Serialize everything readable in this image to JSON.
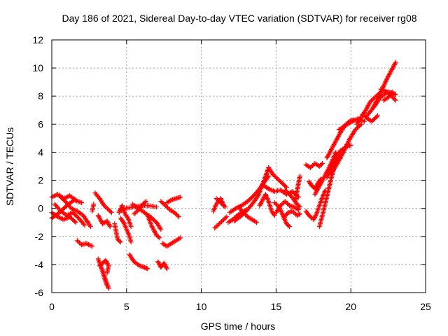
{
  "chart_data": {
    "type": "scatter",
    "title": "Day 186 of 2021, Sidereal Day-to-day VTEC variation (SDTVAR) for receiver rg08",
    "xlabel": "GPS time / hours",
    "ylabel": "SDTVAR / TECUs",
    "xlim": [
      0,
      25
    ],
    "ylim": [
      -6,
      12
    ],
    "xticks": [
      0,
      5,
      10,
      15,
      20,
      25
    ],
    "yticks": [
      -6,
      -4,
      -2,
      0,
      2,
      4,
      6,
      8,
      10,
      12
    ],
    "xtick_labels": [
      "0",
      "5",
      "10",
      "15",
      "20",
      "25"
    ],
    "ytick_labels": [
      "-6",
      "-4",
      "-2",
      "0",
      "2",
      "4",
      "6",
      "8",
      "10",
      "12"
    ],
    "grid": true,
    "marker": "+",
    "color": "#ff0000",
    "tracks": [
      [
        [
          0.0,
          -0.7
        ],
        [
          0.5,
          -0.3
        ],
        [
          1.0,
          0.2
        ],
        [
          1.5,
          0.6
        ],
        [
          2.0,
          0.4
        ]
      ],
      [
        [
          0.0,
          0.8
        ],
        [
          0.4,
          1.0
        ],
        [
          0.8,
          0.7
        ],
        [
          1.2,
          0.9
        ],
        [
          1.6,
          0.6
        ]
      ],
      [
        [
          0.2,
          0.3
        ],
        [
          0.6,
          -0.2
        ],
        [
          1.0,
          -0.5
        ],
        [
          1.4,
          -0.3
        ],
        [
          1.8,
          -0.7
        ],
        [
          2.2,
          -1.2
        ]
      ],
      [
        [
          0.5,
          0.9
        ],
        [
          0.9,
          0.5
        ],
        [
          1.3,
          0.0
        ],
        [
          1.7,
          -0.2
        ],
        [
          2.1,
          -0.5
        ],
        [
          2.6,
          -1.3
        ]
      ],
      [
        [
          0.0,
          -0.3
        ],
        [
          0.4,
          -0.6
        ],
        [
          0.8,
          -0.8
        ],
        [
          1.2,
          -0.6
        ],
        [
          1.6,
          -1.0
        ]
      ],
      [
        [
          1.7,
          -2.3
        ],
        [
          2.0,
          -2.6
        ],
        [
          2.3,
          -2.5
        ],
        [
          2.7,
          -2.7
        ]
      ],
      [
        [
          2.7,
          -0.2
        ],
        [
          2.8,
          0.3
        ]
      ],
      [
        [
          2.9,
          1.1
        ],
        [
          3.2,
          0.7
        ],
        [
          3.5,
          0.2
        ],
        [
          3.8,
          -0.1
        ],
        [
          4.0,
          -0.3
        ]
      ],
      [
        [
          3.1,
          -0.5
        ],
        [
          3.4,
          -1.1
        ],
        [
          3.7,
          -0.9
        ],
        [
          3.9,
          -1.3
        ]
      ],
      [
        [
          3.1,
          -3.6
        ],
        [
          3.3,
          -4.2
        ],
        [
          3.5,
          -4.8
        ],
        [
          3.7,
          -5.4
        ],
        [
          3.8,
          -5.7
        ]
      ],
      [
        [
          3.2,
          -4.1
        ],
        [
          3.4,
          -3.9
        ],
        [
          3.6,
          -3.7
        ],
        [
          3.8,
          -4.1
        ],
        [
          3.7,
          -4.6
        ]
      ],
      [
        [
          3.4,
          -4.4
        ],
        [
          3.5,
          -4.9
        ],
        [
          3.6,
          -5.2
        ],
        [
          3.7,
          -5.5
        ]
      ],
      [
        [
          4.2,
          -1.1
        ],
        [
          4.4,
          -2.2
        ],
        [
          4.6,
          -2.4
        ]
      ],
      [
        [
          4.5,
          -0.3
        ],
        [
          4.7,
          0.2
        ],
        [
          4.9,
          -0.4
        ],
        [
          5.1,
          -0.7
        ],
        [
          5.3,
          -1.3
        ]
      ],
      [
        [
          4.6,
          -0.7
        ],
        [
          4.8,
          -1.0
        ],
        [
          5.0,
          -1.5
        ],
        [
          5.2,
          -2.0
        ],
        [
          5.3,
          -2.4
        ]
      ],
      [
        [
          4.5,
          -0.2
        ],
        [
          4.9,
          0.0
        ],
        [
          5.5,
          0.1
        ],
        [
          6.0,
          0.2
        ],
        [
          6.5,
          0.2
        ],
        [
          7.0,
          0.1
        ]
      ],
      [
        [
          5.4,
          0.3
        ],
        [
          5.8,
          0.0
        ],
        [
          6.2,
          -0.3
        ],
        [
          6.6,
          -0.6
        ],
        [
          7.0,
          -1.0
        ],
        [
          7.3,
          -1.5
        ]
      ],
      [
        [
          5.5,
          -0.4
        ],
        [
          5.8,
          -0.1
        ],
        [
          6.1,
          0.3
        ],
        [
          6.3,
          0.5
        ]
      ],
      [
        [
          5.2,
          -3.3
        ],
        [
          5.5,
          -3.8
        ],
        [
          5.9,
          -4.1
        ],
        [
          6.2,
          -4.2
        ],
        [
          6.4,
          -4.3
        ]
      ],
      [
        [
          6.4,
          -0.5
        ],
        [
          6.7,
          -1.3
        ],
        [
          7.0,
          -1.9
        ],
        [
          7.2,
          -2.1
        ]
      ],
      [
        [
          7.1,
          -3.8
        ],
        [
          7.3,
          -4.2
        ],
        [
          7.5,
          -3.9
        ],
        [
          7.7,
          -4.3
        ]
      ],
      [
        [
          7.3,
          0.5
        ],
        [
          7.6,
          0.2
        ],
        [
          7.9,
          -0.1
        ],
        [
          8.2,
          -0.3
        ],
        [
          8.5,
          -0.6
        ]
      ],
      [
        [
          7.4,
          -2.5
        ],
        [
          7.7,
          -2.7
        ],
        [
          8.0,
          -2.5
        ],
        [
          8.3,
          -2.3
        ],
        [
          8.6,
          -2.1
        ]
      ],
      [
        [
          7.7,
          0.4
        ],
        [
          8.0,
          0.6
        ],
        [
          8.3,
          0.7
        ],
        [
          8.6,
          0.8
        ]
      ],
      [
        [
          10.8,
          -0.2
        ],
        [
          11.0,
          0.3
        ],
        [
          11.3,
          0.7
        ],
        [
          11.5,
          0.2
        ]
      ],
      [
        [
          10.9,
          -1.4
        ],
        [
          11.2,
          -1.1
        ],
        [
          11.5,
          -0.8
        ],
        [
          11.7,
          -0.6
        ]
      ],
      [
        [
          11.0,
          0.7
        ],
        [
          11.3,
          0.4
        ],
        [
          11.6,
          0.1
        ]
      ],
      [
        [
          11.8,
          -1.0
        ],
        [
          12.1,
          -0.8
        ],
        [
          12.4,
          -0.5
        ],
        [
          12.7,
          -0.3
        ],
        [
          13.0,
          -0.1
        ]
      ],
      [
        [
          11.9,
          -0.3
        ],
        [
          12.3,
          0.0
        ],
        [
          12.7,
          0.2
        ],
        [
          13.1,
          0.5
        ],
        [
          13.5,
          0.9
        ],
        [
          13.9,
          1.4
        ],
        [
          14.3,
          2.0
        ],
        [
          14.5,
          2.3
        ]
      ],
      [
        [
          12.2,
          -0.9
        ],
        [
          12.6,
          -0.6
        ],
        [
          13.0,
          -0.2
        ],
        [
          13.4,
          0.3
        ],
        [
          13.8,
          0.9
        ],
        [
          14.2,
          2.0
        ],
        [
          14.5,
          2.9
        ],
        [
          14.8,
          2.4
        ],
        [
          15.3,
          1.9
        ],
        [
          15.7,
          1.5
        ]
      ],
      [
        [
          12.5,
          0.1
        ],
        [
          12.8,
          -0.3
        ],
        [
          13.1,
          -0.6
        ],
        [
          13.4,
          -0.8
        ],
        [
          13.7,
          -1.0
        ]
      ],
      [
        [
          13.9,
          0.2
        ],
        [
          14.1,
          0.6
        ],
        [
          14.3,
          1.0
        ],
        [
          14.5,
          0.5
        ],
        [
          14.7,
          -0.2
        ],
        [
          14.9,
          -0.5
        ]
      ],
      [
        [
          14.2,
          1.6
        ],
        [
          14.5,
          1.4
        ],
        [
          14.9,
          1.2
        ],
        [
          15.3,
          1.3
        ],
        [
          15.7,
          1.0
        ],
        [
          16.1,
          1.2
        ],
        [
          16.5,
          0.8
        ]
      ],
      [
        [
          14.9,
          0.4
        ],
        [
          15.2,
          0.1
        ],
        [
          15.5,
          -0.6
        ],
        [
          15.7,
          -1.1
        ],
        [
          15.9,
          -1.3
        ]
      ],
      [
        [
          15.0,
          -0.3
        ],
        [
          15.3,
          0.2
        ],
        [
          15.6,
          0.5
        ],
        [
          15.9,
          0.2
        ],
        [
          16.2,
          0.1
        ],
        [
          16.5,
          -0.1
        ]
      ],
      [
        [
          15.5,
          -0.7
        ],
        [
          15.8,
          -0.3
        ],
        [
          16.1,
          -0.2
        ],
        [
          16.4,
          -0.5
        ],
        [
          16.6,
          -0.4
        ]
      ],
      [
        [
          15.6,
          1.3
        ],
        [
          15.9,
          1.0
        ],
        [
          16.2,
          0.6
        ],
        [
          16.4,
          0.3
        ],
        [
          16.6,
          0.1
        ]
      ],
      [
        [
          16.3,
          0.6
        ],
        [
          16.4,
          1.2
        ],
        [
          16.5,
          1.8
        ],
        [
          16.6,
          2.3
        ]
      ],
      [
        [
          17.0,
          -0.2
        ],
        [
          17.2,
          -0.5
        ],
        [
          17.4,
          -0.7
        ]
      ],
      [
        [
          17.0,
          3.1
        ],
        [
          17.3,
          2.9
        ],
        [
          17.6,
          3.2
        ],
        [
          17.9,
          3.0
        ],
        [
          18.1,
          3.2
        ]
      ],
      [
        [
          17.2,
          1.9
        ],
        [
          17.4,
          1.6
        ],
        [
          17.6,
          1.4
        ],
        [
          17.8,
          1.8
        ],
        [
          18.0,
          2.1
        ]
      ],
      [
        [
          17.5,
          -0.8
        ],
        [
          17.7,
          -0.4
        ],
        [
          17.9,
          0.2
        ],
        [
          18.1,
          0.8
        ],
        [
          18.3,
          1.3
        ]
      ],
      [
        [
          17.6,
          1.0
        ],
        [
          17.9,
          1.6
        ],
        [
          18.2,
          2.2
        ],
        [
          18.5,
          2.8
        ],
        [
          18.8,
          3.5
        ],
        [
          19.0,
          4.0
        ]
      ],
      [
        [
          17.9,
          -1.3
        ],
        [
          18.1,
          -0.5
        ],
        [
          18.3,
          0.4
        ],
        [
          18.5,
          1.3
        ],
        [
          18.7,
          2.2
        ],
        [
          18.9,
          3.0
        ],
        [
          19.1,
          3.6
        ],
        [
          19.3,
          4.1
        ]
      ],
      [
        [
          18.4,
          2.2
        ],
        [
          18.7,
          2.9
        ],
        [
          19.0,
          3.6
        ],
        [
          19.3,
          4.1
        ],
        [
          19.7,
          4.4
        ],
        [
          20.0,
          4.5
        ]
      ],
      [
        [
          18.4,
          3.6
        ],
        [
          18.7,
          4.2
        ],
        [
          19.0,
          4.8
        ],
        [
          19.3,
          5.4
        ],
        [
          19.6,
          5.9
        ],
        [
          19.9,
          6.2
        ],
        [
          20.2,
          6.3
        ]
      ],
      [
        [
          18.7,
          2.5
        ],
        [
          19.1,
          3.2
        ],
        [
          19.5,
          4.0
        ],
        [
          19.9,
          4.9
        ],
        [
          20.3,
          5.6
        ],
        [
          20.7,
          6.0
        ]
      ],
      [
        [
          19.2,
          5.6
        ],
        [
          19.5,
          5.8
        ],
        [
          19.8,
          6.0
        ],
        [
          20.1,
          6.2
        ],
        [
          20.5,
          6.4
        ],
        [
          20.9,
          6.2
        ]
      ],
      [
        [
          20.4,
          6.0
        ],
        [
          20.7,
          6.5
        ],
        [
          21.0,
          7.0
        ],
        [
          21.3,
          7.6
        ],
        [
          21.6,
          7.9
        ],
        [
          21.9,
          8.2
        ]
      ],
      [
        [
          20.8,
          6.7
        ],
        [
          21.1,
          6.4
        ],
        [
          21.4,
          6.2
        ],
        [
          21.6,
          6.4
        ],
        [
          21.8,
          6.6
        ]
      ],
      [
        [
          21.0,
          6.5
        ],
        [
          21.3,
          6.9
        ],
        [
          21.6,
          7.3
        ],
        [
          21.9,
          7.8
        ],
        [
          22.2,
          8.1
        ],
        [
          22.5,
          8.3
        ],
        [
          22.8,
          8.2
        ],
        [
          23.0,
          8.1
        ]
      ],
      [
        [
          21.5,
          7.2
        ],
        [
          21.8,
          7.8
        ],
        [
          22.1,
          8.5
        ],
        [
          22.4,
          9.2
        ],
        [
          22.7,
          9.8
        ],
        [
          23.0,
          10.4
        ]
      ],
      [
        [
          22.0,
          8.5
        ],
        [
          22.4,
          8.3
        ],
        [
          22.7,
          8.0
        ],
        [
          23.0,
          7.7
        ]
      ],
      [
        [
          22.2,
          7.7
        ],
        [
          22.5,
          7.9
        ],
        [
          22.8,
          8.3
        ]
      ]
    ]
  }
}
